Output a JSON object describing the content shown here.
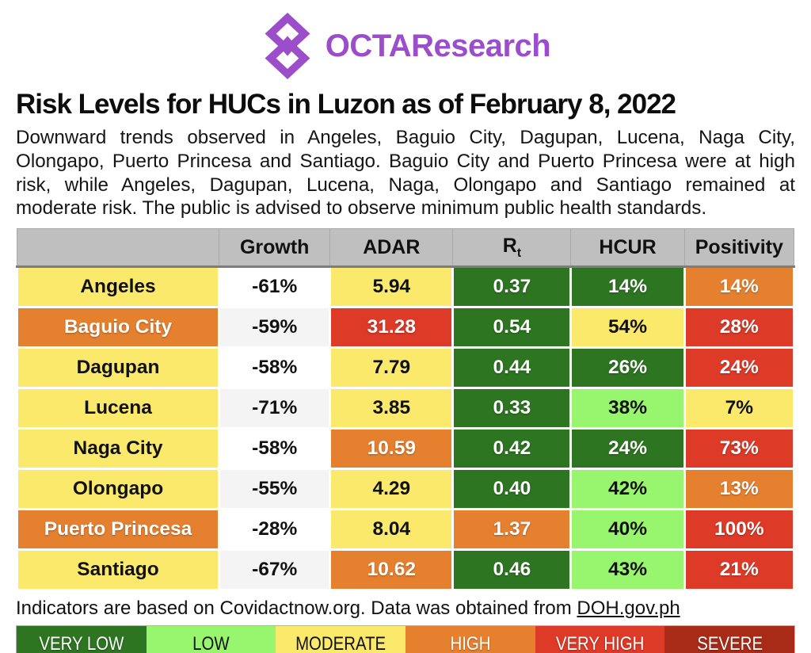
{
  "brand": {
    "name": "OCTAResearch",
    "color": "#9B4DCA"
  },
  "header": {
    "title": "Risk Levels for HUCs in Luzon as of February 8, 2022",
    "description": "Downward trends observed in Angeles, Baguio City, Dagupan, Lucena, Naga City, Olongapo, Puerto Princesa and Santiago. Baguio City and Puerto Princesa were at high risk, while Angeles, Dagupan, Lucena, Naga, Olongapo and Santiago remained at moderate risk. The public is advised to observe minimum public health standards."
  },
  "risk_colors": {
    "very_low": "#2D7521",
    "low": "#98F56E",
    "moderate": "#FAE96B",
    "high": "#E5802F",
    "very_high": "#DD3A28",
    "severe": "#A82B17",
    "white": "#FFFFFF",
    "offwhite": "#F4F4F4",
    "header": "#BFBFBF"
  },
  "dark_risks": [
    "very_low",
    "high",
    "very_high",
    "severe"
  ],
  "chart_data": {
    "type": "table",
    "columns": [
      {
        "label": ""
      },
      {
        "label": "Growth"
      },
      {
        "label": "ADAR"
      },
      {
        "label": "R",
        "sub": "t"
      },
      {
        "label": "HCUR"
      },
      {
        "label": "Positivity"
      }
    ],
    "rows": [
      {
        "name": "Angeles",
        "name_risk": "moderate",
        "cells": [
          {
            "value": "-61%",
            "risk": "white"
          },
          {
            "value": "5.94",
            "risk": "moderate"
          },
          {
            "value": "0.37",
            "risk": "very_low"
          },
          {
            "value": "14%",
            "risk": "very_low"
          },
          {
            "value": "14%",
            "risk": "high"
          }
        ]
      },
      {
        "name": "Baguio City",
        "name_risk": "high",
        "cells": [
          {
            "value": "-59%",
            "risk": "offwhite"
          },
          {
            "value": "31.28",
            "risk": "very_high"
          },
          {
            "value": "0.54",
            "risk": "very_low"
          },
          {
            "value": "54%",
            "risk": "moderate"
          },
          {
            "value": "28%",
            "risk": "very_high"
          }
        ]
      },
      {
        "name": "Dagupan",
        "name_risk": "moderate",
        "cells": [
          {
            "value": "-58%",
            "risk": "white"
          },
          {
            "value": "7.79",
            "risk": "moderate"
          },
          {
            "value": "0.44",
            "risk": "very_low"
          },
          {
            "value": "26%",
            "risk": "very_low"
          },
          {
            "value": "24%",
            "risk": "very_high"
          }
        ]
      },
      {
        "name": "Lucena",
        "name_risk": "moderate",
        "cells": [
          {
            "value": "-71%",
            "risk": "offwhite"
          },
          {
            "value": "3.85",
            "risk": "moderate"
          },
          {
            "value": "0.33",
            "risk": "very_low"
          },
          {
            "value": "38%",
            "risk": "low"
          },
          {
            "value": "7%",
            "risk": "moderate"
          }
        ]
      },
      {
        "name": "Naga City",
        "name_risk": "moderate",
        "cells": [
          {
            "value": "-58%",
            "risk": "white"
          },
          {
            "value": "10.59",
            "risk": "high"
          },
          {
            "value": "0.42",
            "risk": "very_low"
          },
          {
            "value": "24%",
            "risk": "very_low"
          },
          {
            "value": "73%",
            "risk": "very_high"
          }
        ]
      },
      {
        "name": "Olongapo",
        "name_risk": "moderate",
        "cells": [
          {
            "value": "-55%",
            "risk": "offwhite"
          },
          {
            "value": "4.29",
            "risk": "moderate"
          },
          {
            "value": "0.40",
            "risk": "very_low"
          },
          {
            "value": "42%",
            "risk": "low"
          },
          {
            "value": "13%",
            "risk": "high"
          }
        ]
      },
      {
        "name": "Puerto Princesa",
        "name_risk": "high",
        "cells": [
          {
            "value": "-28%",
            "risk": "white"
          },
          {
            "value": "8.04",
            "risk": "moderate"
          },
          {
            "value": "1.37",
            "risk": "high"
          },
          {
            "value": "40%",
            "risk": "low"
          },
          {
            "value": "100%",
            "risk": "very_high"
          }
        ]
      },
      {
        "name": "Santiago",
        "name_risk": "moderate",
        "cells": [
          {
            "value": "-67%",
            "risk": "offwhite"
          },
          {
            "value": "10.62",
            "risk": "high"
          },
          {
            "value": "0.46",
            "risk": "very_low"
          },
          {
            "value": "43%",
            "risk": "low"
          },
          {
            "value": "21%",
            "risk": "very_high"
          }
        ]
      }
    ]
  },
  "footer": {
    "text": "Indicators are based on Covidactnow.org. Data was obtained from ",
    "link_text": "DOH.gov.ph"
  },
  "legend": [
    {
      "label": "VERY LOW",
      "risk": "very_low"
    },
    {
      "label": "LOW",
      "risk": "low"
    },
    {
      "label": "MODERATE",
      "risk": "moderate"
    },
    {
      "label": "HIGH",
      "risk": "high"
    },
    {
      "label": "VERY HIGH",
      "risk": "very_high"
    },
    {
      "label": "SEVERE",
      "risk": "severe"
    }
  ]
}
